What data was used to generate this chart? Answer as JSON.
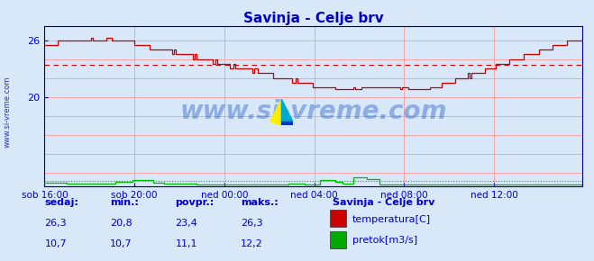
{
  "title": "Savinja - Celje brv",
  "title_color": "#0000cc",
  "bg_color": "#d8e8f8",
  "plot_bg_color": "#d8e8f8",
  "border_color": "#000080",
  "grid_color": "#ff9999",
  "tick_label_color": "#0000cc",
  "watermark": "www.si-vreme.com",
  "watermark_color": "#0000cc",
  "ylim": [
    10.5,
    27.5
  ],
  "xlim": [
    0,
    287
  ],
  "temp_avg_line": 23.4,
  "flow_avg_line": 11.1,
  "x_tick_positions": [
    0,
    48,
    96,
    144,
    192,
    240
  ],
  "x_tick_labels": [
    "sob 16:00",
    "sob 20:00",
    "ned 00:00",
    "ned 04:00",
    "ned 08:00",
    "ned 12:00"
  ],
  "y_tick_positions": [
    20,
    26
  ],
  "stat_labels": [
    "sedaj:",
    "min.:",
    "povpr.:",
    "maks.:"
  ],
  "stat_temp": [
    "26,3",
    "20,8",
    "23,4",
    "26,3"
  ],
  "stat_flow": [
    "10,7",
    "10,7",
    "11,1",
    "12,2"
  ],
  "legend_title": "Savinja - Celje brv",
  "legend_items": [
    {
      "label": "temperatura[C]",
      "color": "#cc0000"
    },
    {
      "label": "pretok[m3/s]",
      "color": "#00aa00"
    }
  ],
  "temp_color": "#cc0000",
  "flow_color": "#00bb00",
  "sidebar_text": "www.si-vreme.com"
}
